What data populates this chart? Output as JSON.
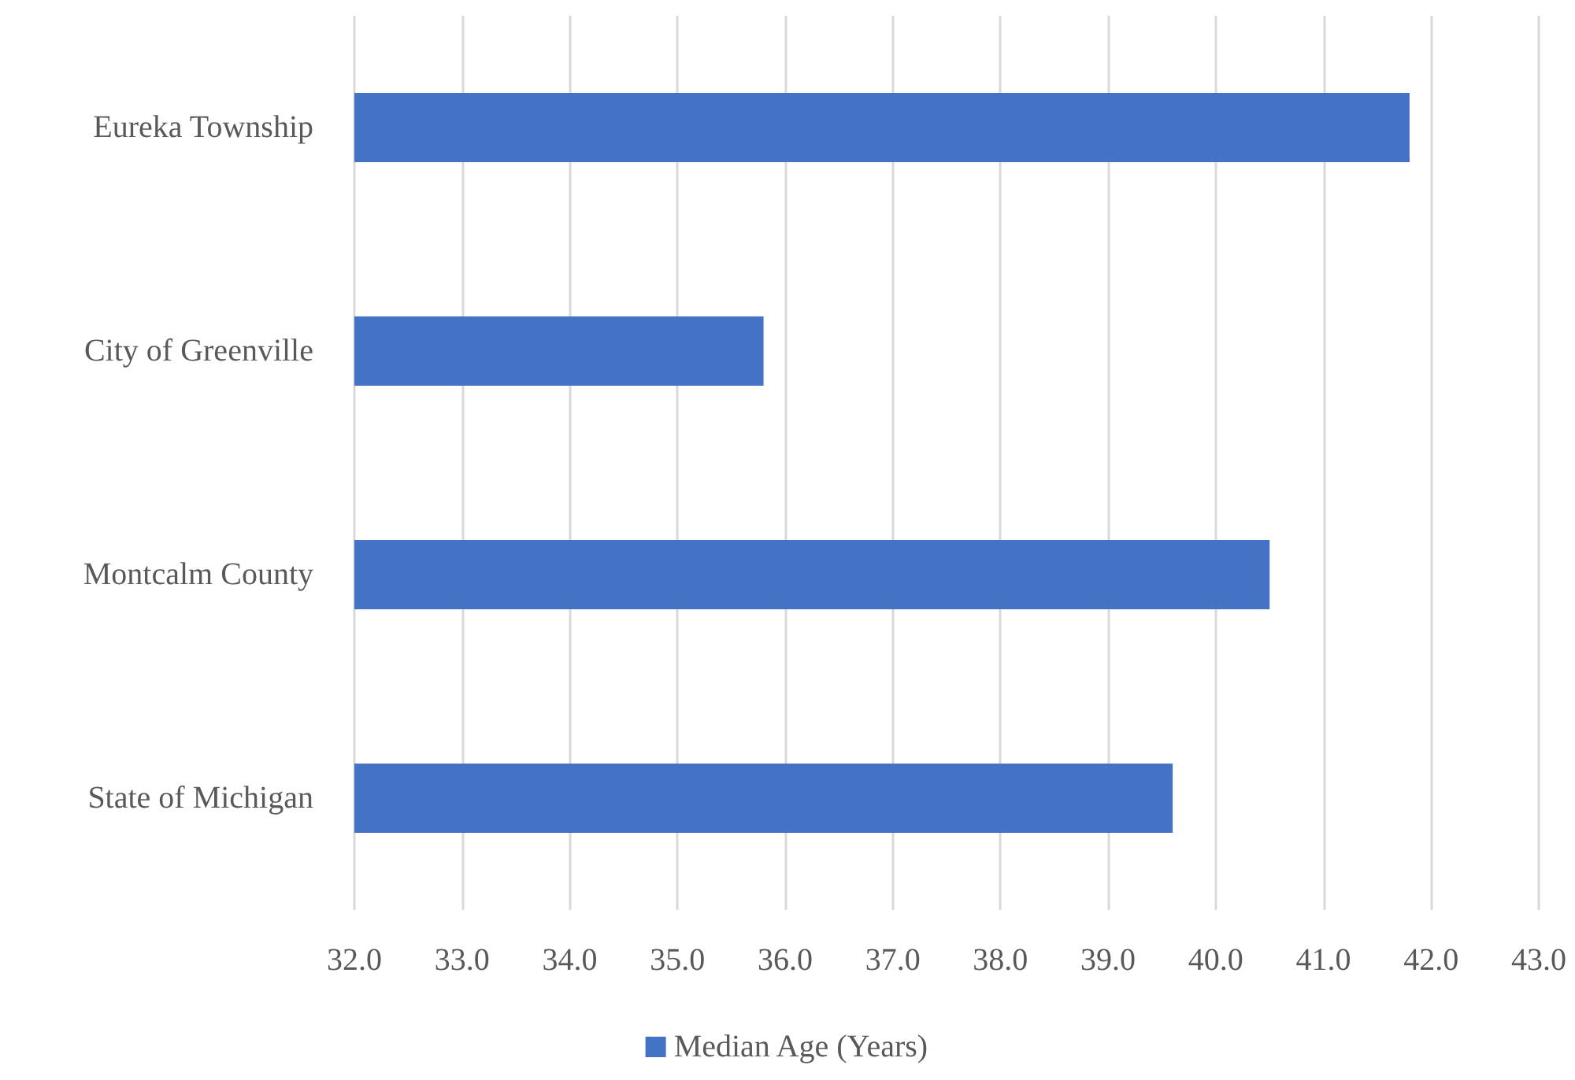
{
  "chart_data": {
    "type": "bar",
    "orientation": "horizontal",
    "categories": [
      "Eureka Township",
      "City of Greenville",
      "Montcalm County",
      "State of Michigan"
    ],
    "series": [
      {
        "name": "Median Age (Years)",
        "color": "#4472c4",
        "values": [
          41.8,
          35.8,
          40.5,
          39.6
        ]
      }
    ],
    "xlim": [
      32,
      43
    ],
    "xticks": [
      {
        "value": 32,
        "label": "32.0"
      },
      {
        "value": 33,
        "label": "33.0"
      },
      {
        "value": 34,
        "label": "34.0"
      },
      {
        "value": 35,
        "label": "35.0"
      },
      {
        "value": 36,
        "label": "36.0"
      },
      {
        "value": 37,
        "label": "37.0"
      },
      {
        "value": 38,
        "label": "38.0"
      },
      {
        "value": 39,
        "label": "39.0"
      },
      {
        "value": 40,
        "label": "40.0"
      },
      {
        "value": 41,
        "label": "41.0"
      },
      {
        "value": 42,
        "label": "42.0"
      },
      {
        "value": 43,
        "label": "43.0"
      }
    ],
    "grid": "x",
    "legend": "bottom"
  }
}
